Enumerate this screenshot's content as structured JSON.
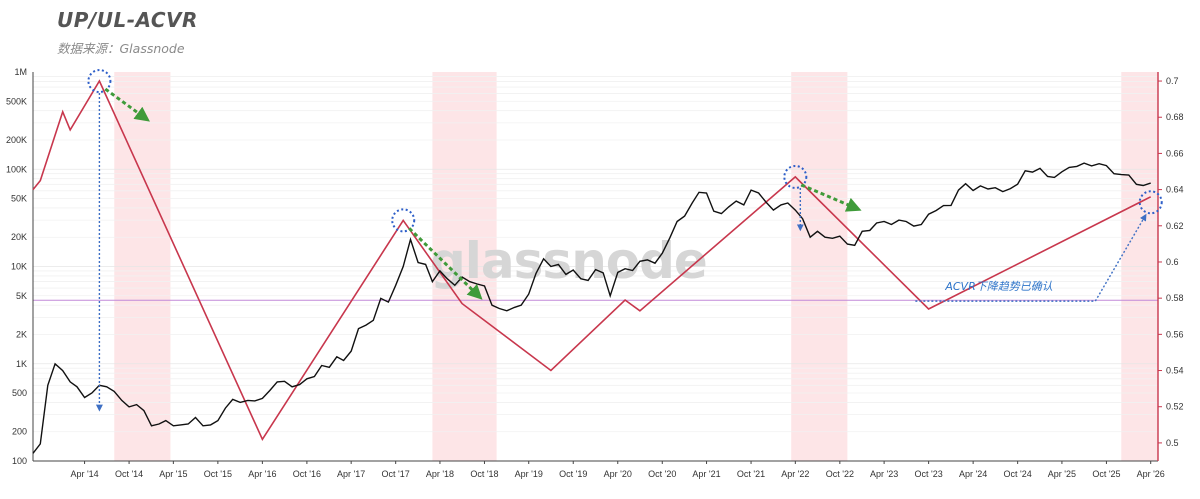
{
  "header": {
    "title": "UP/UL-ACVR",
    "subtitle": "数据来源：Glassnode"
  },
  "watermark": "glassnode",
  "annotation": "ACVR下降趋势已确认",
  "colors": {
    "price": "#111111",
    "acvr": "#c8374d",
    "band": "#fde5e7",
    "threshold": "#c28ad8",
    "circle": "#2e5fc9",
    "green_arrow": "#3f9b3a",
    "blue_arrow": "#3e6fc4",
    "right_axis": "#c8374d"
  },
  "chart_data": {
    "type": "line",
    "title": "UP/UL-ACVR",
    "subtitle": "数据来源：Glassnode",
    "xlabel": "",
    "ylabel": "",
    "x_range": [
      "2013-09-01",
      "2026-05-01"
    ],
    "x_ticks": [
      "Apr '14",
      "Oct '14",
      "Apr '15",
      "Oct '15",
      "Apr '16",
      "Oct '16",
      "Apr '17",
      "Oct '17",
      "Apr '18",
      "Oct '18",
      "Apr '19",
      "Oct '19",
      "Apr '20",
      "Oct '20",
      "Apr '21",
      "Oct '21",
      "Apr '22",
      "Oct '22",
      "Apr '23",
      "Oct '23",
      "Apr '24",
      "Oct '24",
      "Apr '25",
      "Oct '25",
      "Apr '26"
    ],
    "y_left": {
      "scale": "log",
      "range": [
        100,
        1000000
      ],
      "ticks": [
        "100",
        "200",
        "500",
        "1K",
        "2K",
        "5K",
        "10K",
        "20K",
        "50K",
        "100K",
        "200K",
        "500K",
        "1M"
      ]
    },
    "y_right": {
      "scale": "linear",
      "range": [
        0.49,
        0.705
      ],
      "ticks": [
        "0.5",
        "0.52",
        "0.54",
        "0.56",
        "0.58",
        "0.6",
        "0.62",
        "0.64",
        "0.66",
        "0.68",
        "0.7"
      ]
    },
    "grid": "horizontal",
    "threshold_line": {
      "axis": "left",
      "value": 4500
    },
    "highlight_periods": [
      [
        "2014-08-01",
        "2015-03-20"
      ],
      [
        "2018-03-01",
        "2018-11-20"
      ],
      [
        "2022-03-15",
        "2022-11-01"
      ],
      [
        "2025-12-01",
        "2026-05-01"
      ]
    ],
    "series": [
      {
        "axis": "left",
        "points": [
          [
            "2013-09-01",
            120
          ],
          [
            "2013-10-01",
            150
          ],
          [
            "2013-11-01",
            600
          ],
          [
            "2013-12-01",
            1000
          ],
          [
            "2014-01-01",
            850
          ],
          [
            "2014-02-01",
            650
          ],
          [
            "2014-03-01",
            580
          ],
          [
            "2014-04-01",
            450
          ],
          [
            "2014-05-01",
            500
          ],
          [
            "2014-06-01",
            600
          ],
          [
            "2014-07-01",
            580
          ],
          [
            "2014-08-01",
            520
          ],
          [
            "2014-09-01",
            420
          ],
          [
            "2014-10-01",
            360
          ],
          [
            "2014-11-01",
            380
          ],
          [
            "2014-12-01",
            330
          ],
          [
            "2015-01-01",
            230
          ],
          [
            "2015-02-01",
            240
          ],
          [
            "2015-03-01",
            260
          ],
          [
            "2015-04-01",
            230
          ],
          [
            "2015-05-01",
            235
          ],
          [
            "2015-06-01",
            240
          ],
          [
            "2015-07-01",
            280
          ],
          [
            "2015-08-01",
            230
          ],
          [
            "2015-09-01",
            235
          ],
          [
            "2015-10-01",
            260
          ],
          [
            "2015-11-01",
            350
          ],
          [
            "2015-12-01",
            430
          ],
          [
            "2016-01-01",
            400
          ],
          [
            "2016-02-01",
            420
          ],
          [
            "2016-03-01",
            415
          ],
          [
            "2016-04-01",
            440
          ],
          [
            "2016-05-01",
            530
          ],
          [
            "2016-06-01",
            650
          ],
          [
            "2016-07-01",
            660
          ],
          [
            "2016-08-01",
            580
          ],
          [
            "2016-09-01",
            610
          ],
          [
            "2016-10-01",
            700
          ],
          [
            "2016-11-01",
            740
          ],
          [
            "2016-12-01",
            960
          ],
          [
            "2017-01-01",
            920
          ],
          [
            "2017-02-01",
            1180
          ],
          [
            "2017-03-01",
            1080
          ],
          [
            "2017-04-01",
            1350
          ],
          [
            "2017-05-01",
            2300
          ],
          [
            "2017-06-01",
            2500
          ],
          [
            "2017-07-01",
            2800
          ],
          [
            "2017-08-01",
            4700
          ],
          [
            "2017-09-01",
            4300
          ],
          [
            "2017-10-01",
            6400
          ],
          [
            "2017-11-01",
            10000
          ],
          [
            "2017-12-01",
            19000
          ],
          [
            "2018-01-01",
            11000
          ],
          [
            "2018-02-01",
            10500
          ],
          [
            "2018-03-01",
            7000
          ],
          [
            "2018-04-01",
            9000
          ],
          [
            "2018-05-01",
            7500
          ],
          [
            "2018-06-01",
            6400
          ],
          [
            "2018-07-01",
            7800
          ],
          [
            "2018-08-01",
            7000
          ],
          [
            "2018-09-01",
            6600
          ],
          [
            "2018-10-01",
            6300
          ],
          [
            "2018-11-01",
            4000
          ],
          [
            "2018-12-01",
            3700
          ],
          [
            "2019-01-01",
            3500
          ],
          [
            "2019-02-01",
            3800
          ],
          [
            "2019-03-01",
            4000
          ],
          [
            "2019-04-01",
            5200
          ],
          [
            "2019-05-01",
            8500
          ],
          [
            "2019-06-01",
            12000
          ],
          [
            "2019-07-01",
            10000
          ],
          [
            "2019-08-01",
            10500
          ],
          [
            "2019-09-01",
            8300
          ],
          [
            "2019-10-01",
            9200
          ],
          [
            "2019-11-01",
            7500
          ],
          [
            "2019-12-01",
            7200
          ],
          [
            "2020-01-01",
            9300
          ],
          [
            "2020-02-01",
            8600
          ],
          [
            "2020-03-01",
            5000
          ],
          [
            "2020-04-01",
            8700
          ],
          [
            "2020-05-01",
            9500
          ],
          [
            "2020-06-01",
            9100
          ],
          [
            "2020-07-01",
            11300
          ],
          [
            "2020-08-01",
            11700
          ],
          [
            "2020-09-01",
            10800
          ],
          [
            "2020-10-01",
            13700
          ],
          [
            "2020-11-01",
            19700
          ],
          [
            "2020-12-01",
            29000
          ],
          [
            "2021-01-01",
            33000
          ],
          [
            "2021-02-01",
            45000
          ],
          [
            "2021-03-01",
            58000
          ],
          [
            "2021-04-01",
            57000
          ],
          [
            "2021-05-01",
            37000
          ],
          [
            "2021-06-01",
            35000
          ],
          [
            "2021-07-01",
            41000
          ],
          [
            "2021-08-01",
            47000
          ],
          [
            "2021-09-01",
            43000
          ],
          [
            "2021-10-01",
            61000
          ],
          [
            "2021-11-01",
            57000
          ],
          [
            "2021-12-01",
            46000
          ],
          [
            "2022-01-01",
            38000
          ],
          [
            "2022-02-01",
            43000
          ],
          [
            "2022-03-01",
            45000
          ],
          [
            "2022-04-01",
            38000
          ],
          [
            "2022-05-01",
            31000
          ],
          [
            "2022-06-01",
            20000
          ],
          [
            "2022-07-01",
            23000
          ],
          [
            "2022-08-01",
            20000
          ],
          [
            "2022-09-01",
            19500
          ],
          [
            "2022-10-01",
            20500
          ],
          [
            "2022-11-01",
            17000
          ],
          [
            "2022-12-01",
            16500
          ],
          [
            "2023-01-01",
            23000
          ],
          [
            "2023-02-01",
            23500
          ],
          [
            "2023-03-01",
            28000
          ],
          [
            "2023-04-01",
            29000
          ],
          [
            "2023-05-01",
            27000
          ],
          [
            "2023-06-01",
            30000
          ],
          [
            "2023-07-01",
            29000
          ],
          [
            "2023-08-01",
            26000
          ],
          [
            "2023-09-01",
            27000
          ],
          [
            "2023-10-01",
            34500
          ],
          [
            "2023-11-01",
            37700
          ],
          [
            "2023-12-01",
            42300
          ],
          [
            "2024-01-01",
            42500
          ],
          [
            "2024-02-01",
            61000
          ],
          [
            "2024-03-01",
            71000
          ],
          [
            "2024-04-01",
            60500
          ],
          [
            "2024-05-01",
            67500
          ],
          [
            "2024-06-01",
            62700
          ],
          [
            "2024-07-01",
            64600
          ],
          [
            "2024-08-01",
            58900
          ],
          [
            "2024-09-01",
            63300
          ],
          [
            "2024-10-01",
            70200
          ],
          [
            "2024-11-01",
            96400
          ],
          [
            "2024-12-01",
            93400
          ],
          [
            "2025-01-01",
            102000
          ],
          [
            "2025-02-01",
            84300
          ],
          [
            "2025-03-01",
            82500
          ],
          [
            "2025-04-01",
            94200
          ],
          [
            "2025-05-01",
            104600
          ],
          [
            "2025-06-01",
            107100
          ],
          [
            "2025-07-01",
            115700
          ],
          [
            "2025-08-01",
            108200
          ],
          [
            "2025-09-01",
            114000
          ],
          [
            "2025-10-01",
            109000
          ],
          [
            "2025-11-01",
            90000
          ],
          [
            "2025-12-01",
            88000
          ],
          [
            "2026-01-01",
            87000
          ],
          [
            "2026-02-01",
            70000
          ],
          [
            "2026-03-01",
            68000
          ],
          [
            "2026-04-01",
            72000
          ]
        ]
      },
      {
        "axis": "right",
        "points": [
          [
            "2013-09-01",
            0.64
          ],
          [
            "2013-10-01",
            0.645
          ],
          [
            "2014-01-01",
            0.683
          ],
          [
            "2014-02-01",
            0.673
          ],
          [
            "2014-06-01",
            0.7
          ],
          [
            "2016-04-01",
            0.502
          ],
          [
            "2017-11-01",
            0.623
          ],
          [
            "2018-07-01",
            0.577
          ],
          [
            "2019-07-01",
            0.54
          ],
          [
            "2020-05-01",
            0.579
          ],
          [
            "2020-07-01",
            0.573
          ],
          [
            "2022-04-01",
            0.647
          ],
          [
            "2023-10-01",
            0.574
          ],
          [
            "2026-04-01",
            0.636
          ]
        ]
      }
    ],
    "annotations": [
      {
        "text": "ACVR下降趋势已确认",
        "x": "2024-09-01",
        "y_right": 0.585
      }
    ]
  }
}
